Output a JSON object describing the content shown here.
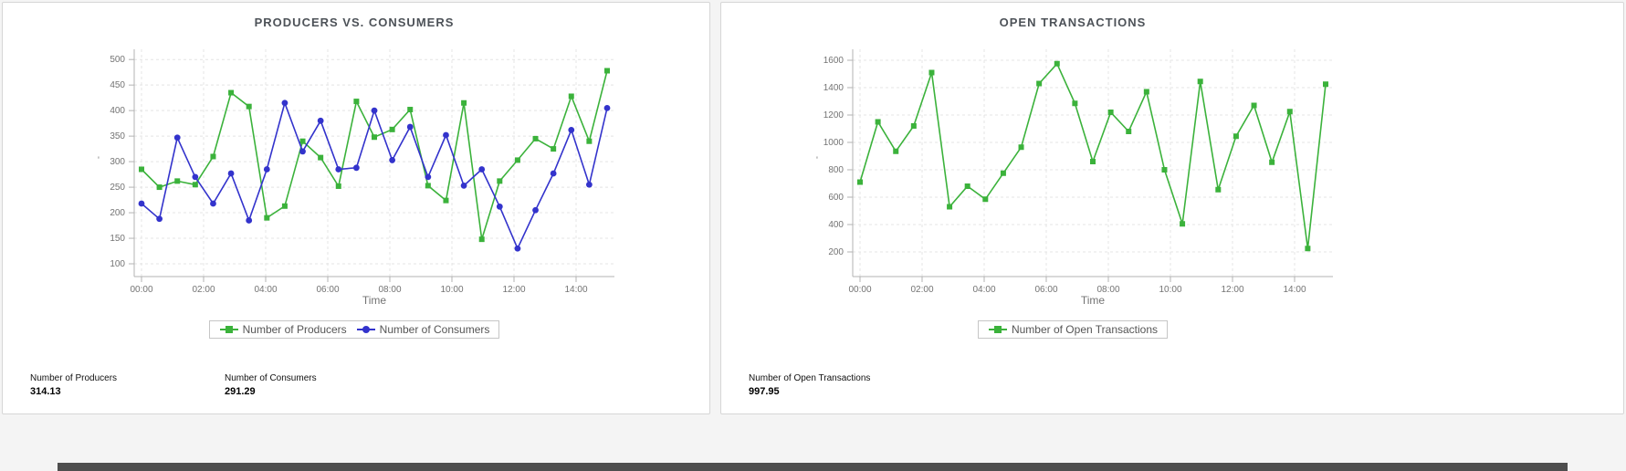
{
  "page": {
    "background": "#f4f4f4",
    "card_border": "#d6d6d6",
    "bottom_bar_color": "#4e4e4e"
  },
  "chart_data": [
    {
      "type": "line",
      "title": "PRODUCERS VS. CONSUMERS",
      "xlabel": "Time",
      "ylabel": "'",
      "x_tick_labels": [
        "00:00",
        "02:00",
        "04:00",
        "06:00",
        "08:00",
        "10:00",
        "12:00",
        "14:00"
      ],
      "x_tick_hours": [
        0,
        2,
        4,
        6,
        8,
        10,
        12,
        14
      ],
      "x_domain_hours": [
        0,
        15
      ],
      "y_ticks": [
        100,
        150,
        200,
        250,
        300,
        350,
        400,
        450,
        500
      ],
      "ylim": [
        75,
        520
      ],
      "grid": true,
      "legend_position": "bottom",
      "series": [
        {
          "name": "Number of Producers",
          "color": "#3bb23b",
          "marker": "square",
          "values": [
            285,
            250,
            262,
            255,
            310,
            435,
            408,
            190,
            213,
            340,
            308,
            252,
            418,
            348,
            363,
            402,
            253,
            224,
            415,
            148,
            262,
            303,
            345,
            325,
            428,
            340,
            478
          ]
        },
        {
          "name": "Number of Consumers",
          "color": "#3333cc",
          "marker": "circle",
          "values": [
            218,
            188,
            347,
            270,
            218,
            277,
            185,
            285,
            415,
            320,
            380,
            285,
            288,
            400,
            303,
            368,
            270,
            352,
            253,
            285,
            212,
            130,
            205,
            277,
            362,
            255,
            405
          ]
        }
      ],
      "summary": [
        {
          "label": "Number of Producers",
          "value": "314.13"
        },
        {
          "label": "Number of Consumers",
          "value": "291.29"
        }
      ]
    },
    {
      "type": "line",
      "title": "OPEN TRANSACTIONS",
      "xlabel": "Time",
      "ylabel": "'",
      "x_tick_labels": [
        "00:00",
        "02:00",
        "04:00",
        "06:00",
        "08:00",
        "10:00",
        "12:00",
        "14:00"
      ],
      "x_tick_hours": [
        0,
        2,
        4,
        6,
        8,
        10,
        12,
        14
      ],
      "x_domain_hours": [
        0,
        15
      ],
      "y_ticks": [
        200,
        400,
        600,
        800,
        1000,
        1200,
        1400,
        1600
      ],
      "ylim": [
        20,
        1680
      ],
      "grid": true,
      "legend_position": "bottom",
      "series": [
        {
          "name": "Number of Open Transactions",
          "color": "#3bb23b",
          "marker": "square",
          "values": [
            710,
            1150,
            935,
            1120,
            1510,
            530,
            680,
            585,
            775,
            965,
            1430,
            1575,
            1285,
            860,
            1220,
            1080,
            1370,
            800,
            405,
            1445,
            655,
            1045,
            1270,
            855,
            1225,
            225,
            1425
          ]
        }
      ],
      "summary": [
        {
          "label": "Number of Open Transactions",
          "value": "997.95"
        }
      ]
    }
  ]
}
